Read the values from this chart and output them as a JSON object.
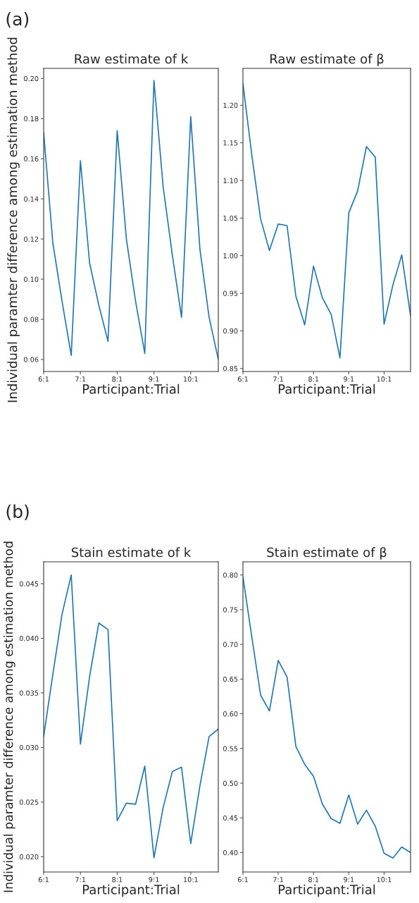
{
  "chart_data": [
    {
      "type": "line",
      "title": "Raw estimate of k",
      "xlabel": "Participant:Trial",
      "ylabel": "Individual paramter difference among estimation method",
      "annotations": [
        "(a)"
      ],
      "categories": [
        "6:1",
        null,
        null,
        null,
        "7:1",
        null,
        null,
        null,
        "8:1",
        null,
        null,
        null,
        "9:1",
        null,
        null,
        null,
        "10:1",
        null,
        null,
        null
      ],
      "series": [
        {
          "color": "#1f77b4",
          "values": [
            0.173,
            0.118,
            0.089,
            0.062,
            0.159,
            0.108,
            0.087,
            0.069,
            0.174,
            0.12,
            0.089,
            0.063,
            0.199,
            0.146,
            0.112,
            0.081,
            0.181,
            0.115,
            0.081,
            0.06
          ]
        }
      ],
      "ylim": [
        0.054,
        0.205
      ],
      "yticks": [
        {
          "value": 0.06,
          "label": "0.06"
        },
        {
          "value": 0.08,
          "label": "0.08"
        },
        {
          "value": 0.1,
          "label": "0.10"
        },
        {
          "value": 0.12,
          "label": "0.12"
        },
        {
          "value": 0.14,
          "label": "0.14"
        },
        {
          "value": 0.16,
          "label": "0.16"
        },
        {
          "value": 0.18,
          "label": "0.18"
        },
        {
          "value": 0.2,
          "label": "0.20"
        }
      ],
      "grid": false,
      "legend": false
    },
    {
      "type": "line",
      "title": "Raw estimate of β",
      "xlabel": "Participant:Trial",
      "categories": [
        "6:1",
        null,
        null,
        null,
        "7:1",
        null,
        null,
        null,
        "8:1",
        null,
        null,
        null,
        "9:1",
        null,
        null,
        null,
        "10:1",
        null,
        null,
        null
      ],
      "series": [
        {
          "color": "#1f77b4",
          "values": [
            1.229,
            1.134,
            1.049,
            1.007,
            1.042,
            1.04,
            0.946,
            0.908,
            0.986,
            0.944,
            0.922,
            0.864,
            1.057,
            1.086,
            1.145,
            1.131,
            0.909,
            0.961,
            1.001,
            0.92
          ]
        }
      ],
      "ylim": [
        0.846,
        1.249
      ],
      "yticks": [
        {
          "value": 0.85,
          "label": "0.85"
        },
        {
          "value": 0.9,
          "label": "0.90"
        },
        {
          "value": 0.95,
          "label": "0.95"
        },
        {
          "value": 1.0,
          "label": "1.00"
        },
        {
          "value": 1.05,
          "label": "1.05"
        },
        {
          "value": 1.1,
          "label": "1.10"
        },
        {
          "value": 1.15,
          "label": "1.15"
        },
        {
          "value": 1.2,
          "label": "1.20"
        }
      ],
      "grid": false,
      "legend": false
    },
    {
      "type": "line",
      "title": "Stain estimate of k",
      "xlabel": "Participant:Trial",
      "ylabel": "Individual paramter difference among estimation method",
      "annotations": [
        "(b)"
      ],
      "categories": [
        "6:1",
        null,
        null,
        null,
        "7:1",
        null,
        null,
        null,
        "8:1",
        null,
        null,
        null,
        "9:1",
        null,
        null,
        null,
        "10:1",
        null,
        null,
        null
      ],
      "series": [
        {
          "color": "#1f77b4",
          "values": [
            0.031,
            0.0367,
            0.0422,
            0.0458,
            0.0303,
            0.0365,
            0.0414,
            0.0408,
            0.0233,
            0.0249,
            0.0248,
            0.0283,
            0.0199,
            0.0245,
            0.0278,
            0.0282,
            0.0212,
            0.0265,
            0.031,
            0.0317
          ]
        }
      ],
      "ylim": [
        0.0186,
        0.047
      ],
      "yticks": [
        {
          "value": 0.02,
          "label": "0.020"
        },
        {
          "value": 0.025,
          "label": "0.025"
        },
        {
          "value": 0.03,
          "label": "0.030"
        },
        {
          "value": 0.035,
          "label": "0.035"
        },
        {
          "value": 0.04,
          "label": "0.040"
        },
        {
          "value": 0.045,
          "label": "0.045"
        }
      ],
      "grid": false,
      "legend": false
    },
    {
      "type": "line",
      "title": "Stain estimate of β",
      "xlabel": "Participant:Trial",
      "categories": [
        "6:1",
        null,
        null,
        null,
        "7:1",
        null,
        null,
        null,
        "8:1",
        null,
        null,
        null,
        "9:1",
        null,
        null,
        null,
        "10:1",
        null,
        null,
        null
      ],
      "series": [
        {
          "color": "#1f77b4",
          "values": [
            0.797,
            0.711,
            0.627,
            0.604,
            0.677,
            0.653,
            0.553,
            0.527,
            0.51,
            0.47,
            0.449,
            0.442,
            0.483,
            0.441,
            0.461,
            0.438,
            0.399,
            0.392,
            0.408,
            0.4
          ]
        }
      ],
      "ylim": [
        0.372,
        0.819
      ],
      "yticks": [
        {
          "value": 0.4,
          "label": "0.40"
        },
        {
          "value": 0.45,
          "label": "0.45"
        },
        {
          "value": 0.5,
          "label": "0.50"
        },
        {
          "value": 0.55,
          "label": "0.55"
        },
        {
          "value": 0.6,
          "label": "0.60"
        },
        {
          "value": 0.65,
          "label": "0.65"
        },
        {
          "value": 0.7,
          "label": "0.70"
        },
        {
          "value": 0.75,
          "label": "0.75"
        },
        {
          "value": 0.8,
          "label": "0.80"
        }
      ],
      "grid": false,
      "legend": false
    }
  ]
}
